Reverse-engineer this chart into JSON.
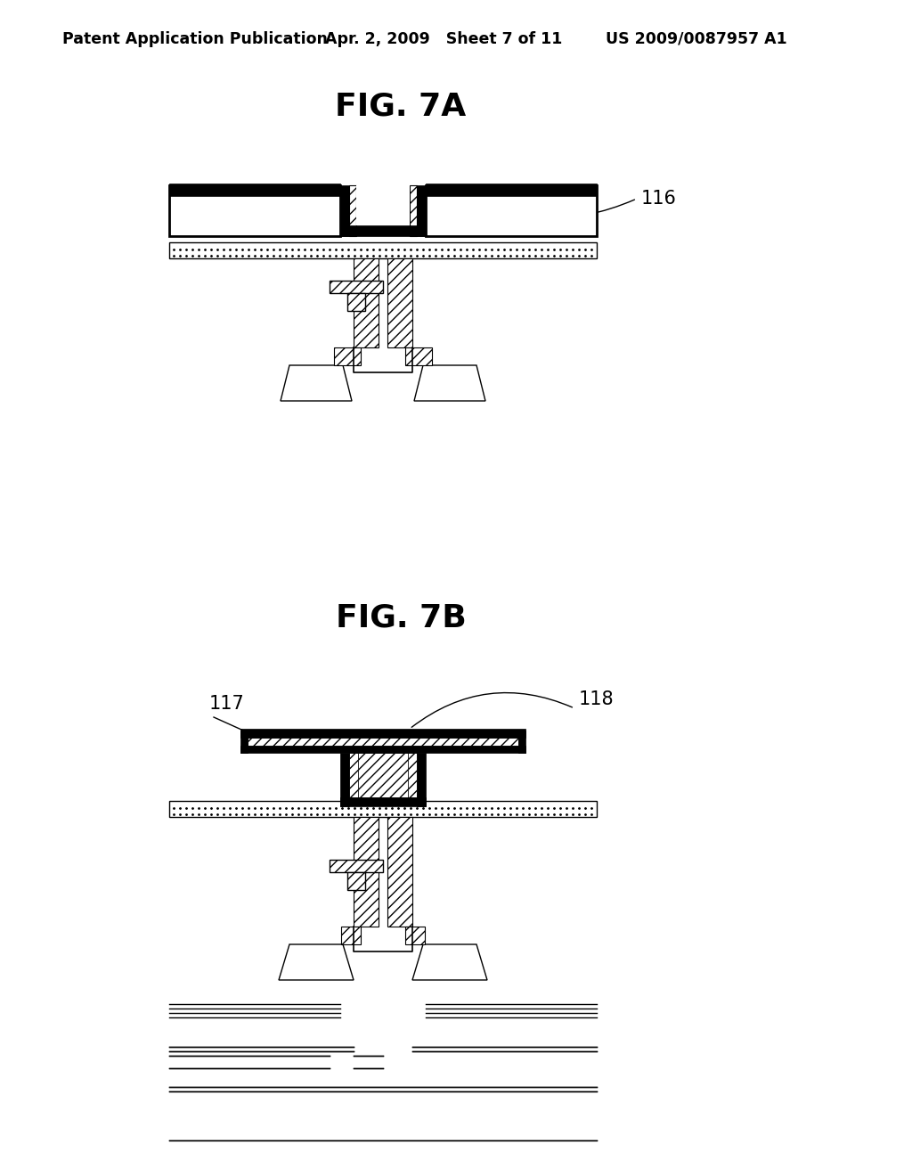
{
  "bg_color": "#ffffff",
  "line_color": "#000000",
  "fig_title_7A": "FIG. 7A",
  "fig_title_7B": "FIG. 7B",
  "label_116": "116",
  "label_117": "117",
  "label_118": "118",
  "header_left": "Patent Application Publication",
  "header_mid": "Apr. 2, 2009   Sheet 7 of 11",
  "header_right": "US 2009/0087957 A1",
  "title_fontsize": 26,
  "label_fontsize": 15,
  "header_fontsize": 12.5
}
